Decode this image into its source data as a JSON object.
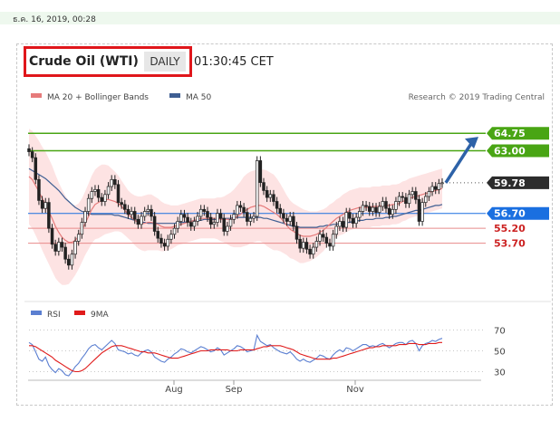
{
  "timestamp": "ธ.ค. 16, 2019, 00:28",
  "header": {
    "title": "Crude Oil (WTI)",
    "timeframe": "DAILY",
    "time": "01:30:45 CET"
  },
  "legend": {
    "ma20": "MA 20 + Bollinger Bands",
    "ma50": "MA 50",
    "credit": "Research © 2019 Trading Central"
  },
  "rsi_legend": {
    "rsi": "RSI",
    "ma": "9MA"
  },
  "colors": {
    "ma20": "#e67b7b",
    "ma50": "#3f5f93",
    "bands": "#fde0e0",
    "resistance": "#49a514",
    "support_blue": "#1a6fe0",
    "support_red": "#cc2222",
    "candle": "#222222",
    "arrow": "#2d62a8",
    "rsi": "#5b7fd1",
    "rsi_ma": "#e01b1b"
  },
  "chart_data": [
    {
      "type": "candlestick",
      "x_range": [
        "2019-07-01",
        "2019-12-16"
      ],
      "y_range": [
        48.3,
        66.5
      ],
      "xticks": [
        "Aug",
        "Sep",
        "Nov"
      ],
      "levels": [
        {
          "value": 64.75,
          "label": "64.75",
          "kind": "resistance"
        },
        {
          "value": 63.0,
          "label": "63.00",
          "kind": "resistance"
        },
        {
          "value": 59.78,
          "label": "59.78",
          "kind": "last"
        },
        {
          "value": 56.7,
          "label": "56.70",
          "kind": "pivot"
        },
        {
          "value": 55.2,
          "label": "55.20",
          "kind": "support"
        },
        {
          "value": 53.7,
          "label": "53.70",
          "kind": "support"
        }
      ],
      "close": [
        62.9,
        62.3,
        60.1,
        58.0,
        57.2,
        57.8,
        55.2,
        53.6,
        52.9,
        53.8,
        53.3,
        52.1,
        51.5,
        52.6,
        53.9,
        54.6,
        55.8,
        56.9,
        58.2,
        58.9,
        59.1,
        58.3,
        57.9,
        58.6,
        59.4,
        60.1,
        59.6,
        57.8,
        57.6,
        57.1,
        56.6,
        56.9,
        56.1,
        55.6,
        56.4,
        56.9,
        57.1,
        56.4,
        54.9,
        54.2,
        53.7,
        53.4,
        54.1,
        54.6,
        55.2,
        55.9,
        56.6,
        56.3,
        55.8,
        55.4,
        55.9,
        56.4,
        57.1,
        56.9,
        56.3,
        55.6,
        55.8,
        56.7,
        56.2,
        54.9,
        55.4,
        56.1,
        56.6,
        57.5,
        57.3,
        56.8,
        55.9,
        56.2,
        56.4,
        62.0,
        59.8,
        59.0,
        58.3,
        58.6,
        57.9,
        57.2,
        56.7,
        56.2,
        55.9,
        56.4,
        55.4,
        54.1,
        53.2,
        53.8,
        53.1,
        52.6,
        53.3,
        53.9,
        54.6,
        54.3,
        53.7,
        53.4,
        54.6,
        55.4,
        55.9,
        55.3,
        56.8,
        56.2,
        55.7,
        56.3,
        56.9,
        57.5,
        57.4,
        56.9,
        57.3,
        56.8,
        57.4,
        57.9,
        57.2,
        56.6,
        57.1,
        57.9,
        58.4,
        58.3,
        57.7,
        58.6,
        58.9,
        58.1,
        55.9,
        57.8,
        58.4,
        58.9,
        59.4,
        59.1,
        59.7,
        59.78
      ],
      "ma20": [
        60.4,
        60.1,
        59.5,
        58.9,
        58.2,
        57.6,
        56.9,
        56.2,
        55.4,
        54.8,
        54.3,
        54.0,
        53.8,
        53.8,
        54.0,
        54.4,
        55.0,
        55.7,
        56.4,
        57.1,
        57.6,
        57.8,
        58.0,
        58.1,
        58.1,
        58.0,
        57.9,
        57.7,
        57.4,
        57.0,
        56.6,
        56.3,
        56.0,
        55.8,
        55.7,
        55.7,
        55.8,
        55.8,
        55.7,
        55.6,
        55.4,
        55.3,
        55.3,
        55.3,
        55.4,
        55.5,
        55.6,
        55.7,
        55.8,
        55.9,
        56.0,
        56.1,
        56.2,
        56.2,
        56.2,
        56.2,
        56.2,
        56.2,
        56.1,
        56.1,
        56.1,
        56.1,
        56.2,
        56.4,
        56.6,
        56.9,
        57.1,
        57.3,
        57.4,
        57.5,
        57.5,
        57.4,
        57.2,
        57.0,
        56.8,
        56.6,
        56.3,
        55.9,
        55.5,
        55.1,
        54.9,
        54.7,
        54.5,
        54.4,
        54.4,
        54.4,
        54.5,
        54.6,
        54.8,
        55.0,
        55.3,
        55.6,
        55.9,
        56.2,
        56.4,
        56.6,
        56.8,
        57.0,
        57.1,
        57.2,
        57.3,
        57.3,
        57.3,
        57.3,
        57.4,
        57.4,
        57.4,
        57.5,
        57.5,
        57.5,
        57.6,
        57.6,
        57.7,
        57.9,
        58.0,
        58.2,
        58.3,
        58.4,
        58.5,
        58.6,
        58.7,
        58.8,
        58.9,
        59.0,
        59.1,
        59.2
      ],
      "ma50": [
        61.2,
        61.0,
        60.8,
        60.6,
        60.4,
        60.2,
        59.9,
        59.6,
        59.3,
        59.0,
        58.6,
        58.2,
        57.9,
        57.6,
        57.3,
        57.1,
        56.9,
        56.8,
        56.7,
        56.6,
        56.6,
        56.6,
        56.6,
        56.6,
        56.6,
        56.6,
        56.5,
        56.5,
        56.4,
        56.3,
        56.2,
        56.1,
        56.0,
        55.9,
        55.8,
        55.8,
        55.7,
        55.7,
        55.7,
        55.7,
        55.7,
        55.7,
        55.7,
        55.7,
        55.7,
        55.8,
        55.8,
        55.8,
        55.9,
        55.9,
        56.0,
        56.0,
        56.0,
        56.1,
        56.1,
        56.1,
        56.1,
        56.1,
        56.2,
        56.2,
        56.2,
        56.2,
        56.3,
        56.3,
        56.3,
        56.3,
        56.3,
        56.3,
        56.3,
        56.3,
        56.3,
        56.2,
        56.2,
        56.1,
        56.0,
        55.9,
        55.8,
        55.7,
        55.6,
        55.5,
        55.4,
        55.4,
        55.3,
        55.3,
        55.3,
        55.3,
        55.3,
        55.3,
        55.4,
        55.4,
        55.5,
        55.5,
        55.6,
        55.6,
        55.7,
        55.7,
        55.8,
        55.8,
        55.9,
        55.9,
        56.0,
        56.0,
        56.1,
        56.1,
        56.1,
        56.2,
        56.2,
        56.2,
        56.3,
        56.3,
        56.4,
        56.4,
        56.5,
        56.6,
        56.7,
        56.8,
        56.9,
        57.0,
        57.0,
        57.1,
        57.2,
        57.3,
        57.4,
        57.5,
        57.5,
        57.6
      ],
      "band_width": [
        4.8,
        4.9,
        5.0,
        5.1,
        5.2,
        5.3,
        5.3,
        5.3,
        5.2,
        5.0,
        4.8,
        4.5,
        4.2,
        3.8,
        3.5,
        3.3,
        3.2,
        3.2,
        3.3,
        3.4,
        3.5,
        3.6,
        3.6,
        3.5,
        3.4,
        3.2,
        3.0,
        2.8,
        2.6,
        2.5,
        2.4,
        2.4,
        2.5,
        2.6,
        2.7,
        2.8,
        2.8,
        2.8,
        2.7,
        2.6,
        2.5,
        2.4,
        2.3,
        2.2,
        2.1,
        2.0,
        2.0,
        2.0,
        2.0,
        2.0,
        2.0,
        2.0,
        2.0,
        2.0,
        2.0,
        2.0,
        2.0,
        2.1,
        2.2,
        2.3,
        2.5,
        2.7,
        2.9,
        3.1,
        3.3,
        3.5,
        3.6,
        3.6,
        3.6,
        3.6,
        3.6,
        3.7,
        3.8,
        3.8,
        3.8,
        3.6,
        3.4,
        3.2,
        3.0,
        2.9,
        2.8,
        2.8,
        2.8,
        2.7,
        2.6,
        2.5,
        2.4,
        2.3,
        2.2,
        2.1,
        2.0,
        2.0,
        1.9,
        1.9,
        1.9,
        2.0,
        2.0,
        2.0,
        2.0,
        2.0,
        2.0,
        2.0,
        2.0,
        2.0,
        2.0,
        2.0,
        2.0,
        2.0,
        2.0,
        2.0,
        2.0,
        2.0,
        2.0,
        2.0,
        2.0,
        2.0,
        2.0,
        2.0,
        2.0,
        2.0,
        2.0,
        2.0,
        2.0,
        2.0,
        2.0,
        2.0
      ]
    },
    {
      "type": "line",
      "name_ref": "RSI",
      "y_range": [
        20,
        80
      ],
      "yticks": [
        70,
        50,
        30
      ],
      "series": [
        {
          "name": "RSI",
          "values": [
            58,
            56,
            49,
            42,
            40,
            44,
            36,
            32,
            29,
            33,
            31,
            27,
            26,
            30,
            35,
            38,
            43,
            47,
            52,
            55,
            56,
            53,
            51,
            54,
            57,
            60,
            57,
            51,
            50,
            49,
            47,
            48,
            46,
            45,
            48,
            50,
            51,
            49,
            44,
            42,
            40,
            39,
            42,
            44,
            47,
            49,
            52,
            51,
            49,
            48,
            50,
            52,
            54,
            53,
            51,
            49,
            50,
            53,
            51,
            46,
            48,
            50,
            52,
            55,
            54,
            52,
            49,
            50,
            51,
            65,
            59,
            57,
            55,
            56,
            53,
            51,
            49,
            48,
            47,
            49,
            46,
            42,
            40,
            42,
            40,
            39,
            41,
            43,
            46,
            45,
            43,
            42,
            46,
            49,
            51,
            49,
            53,
            52,
            50,
            52,
            54,
            56,
            56,
            54,
            55,
            54,
            56,
            57,
            55,
            53,
            55,
            57,
            58,
            58,
            56,
            59,
            60,
            57,
            50,
            55,
            57,
            58,
            60,
            59,
            61,
            62
          ]
        },
        {
          "name": "9MA",
          "values": [
            55,
            55,
            54,
            52,
            50,
            48,
            46,
            44,
            41,
            39,
            37,
            35,
            33,
            31,
            30,
            30,
            31,
            33,
            36,
            39,
            42,
            45,
            48,
            50,
            52,
            54,
            55,
            55,
            55,
            54,
            53,
            52,
            51,
            50,
            49,
            49,
            48,
            48,
            48,
            47,
            46,
            45,
            44,
            43,
            43,
            43,
            44,
            45,
            46,
            47,
            48,
            49,
            50,
            50,
            50,
            51,
            51,
            51,
            51,
            51,
            51,
            50,
            50,
            50,
            51,
            51,
            51,
            51,
            51,
            52,
            53,
            54,
            54,
            55,
            55,
            55,
            55,
            54,
            53,
            52,
            51,
            49,
            47,
            46,
            45,
            44,
            43,
            42,
            42,
            42,
            42,
            42,
            43,
            43,
            44,
            45,
            46,
            47,
            48,
            49,
            50,
            51,
            52,
            53,
            53,
            54,
            54,
            55,
            55,
            55,
            55,
            55,
            56,
            56,
            56,
            57,
            57,
            57,
            56,
            56,
            56,
            57,
            57,
            57,
            58,
            58
          ]
        }
      ]
    }
  ]
}
